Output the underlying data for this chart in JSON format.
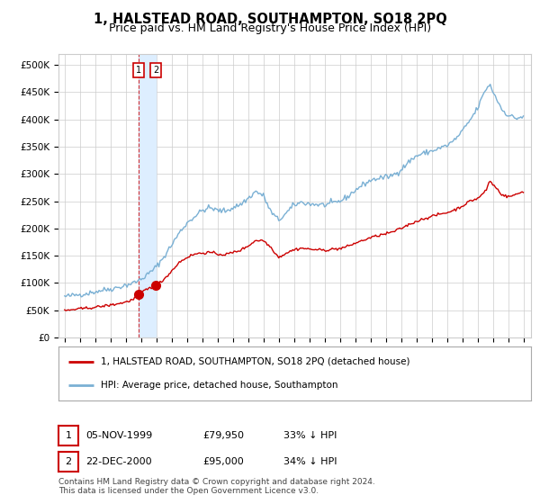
{
  "title": "1, HALSTEAD ROAD, SOUTHAMPTON, SO18 2PQ",
  "subtitle": "Price paid vs. HM Land Registry's House Price Index (HPI)",
  "title_fontsize": 10.5,
  "subtitle_fontsize": 9,
  "ylabel_ticks": [
    "£0",
    "£50K",
    "£100K",
    "£150K",
    "£200K",
    "£250K",
    "£300K",
    "£350K",
    "£400K",
    "£450K",
    "£500K"
  ],
  "ytick_vals": [
    0,
    50000,
    100000,
    150000,
    200000,
    250000,
    300000,
    350000,
    400000,
    450000,
    500000
  ],
  "ylim": [
    0,
    520000
  ],
  "xlim_start": 1994.6,
  "xlim_end": 2025.5,
  "hpi_color": "#7ab0d4",
  "price_color": "#cc0000",
  "bg_color": "#ffffff",
  "grid_color": "#cccccc",
  "highlight_color": "#ddeeff",
  "vline_color": "#cc0000",
  "transaction1_x": 1999.85,
  "transaction1_price": 79950,
  "transaction2_x": 2000.98,
  "transaction2_price": 95000,
  "legend_label_price": "1, HALSTEAD ROAD, SOUTHAMPTON, SO18 2PQ (detached house)",
  "legend_label_hpi": "HPI: Average price, detached house, Southampton",
  "footnote": "Contains HM Land Registry data © Crown copyright and database right 2024.\nThis data is licensed under the Open Government Licence v3.0.",
  "table_rows": [
    [
      "1",
      "05-NOV-1999",
      "£79,950",
      "33% ↓ HPI"
    ],
    [
      "2",
      "22-DEC-2000",
      "£95,000",
      "34% ↓ HPI"
    ]
  ],
  "hpi_anchors": [
    [
      1995.0,
      75000
    ],
    [
      1995.5,
      77000
    ],
    [
      1996.0,
      79000
    ],
    [
      1996.5,
      81000
    ],
    [
      1997.0,
      84000
    ],
    [
      1997.5,
      87000
    ],
    [
      1998.0,
      89000
    ],
    [
      1998.5,
      92000
    ],
    [
      1999.0,
      96000
    ],
    [
      1999.5,
      100000
    ],
    [
      2000.0,
      107000
    ],
    [
      2000.5,
      117000
    ],
    [
      2001.0,
      130000
    ],
    [
      2001.5,
      148000
    ],
    [
      2002.0,
      170000
    ],
    [
      2002.5,
      192000
    ],
    [
      2003.0,
      210000
    ],
    [
      2003.5,
      222000
    ],
    [
      2004.0,
      233000
    ],
    [
      2004.5,
      238000
    ],
    [
      2005.0,
      233000
    ],
    [
      2005.5,
      232000
    ],
    [
      2006.0,
      238000
    ],
    [
      2006.5,
      244000
    ],
    [
      2007.0,
      255000
    ],
    [
      2007.5,
      268000
    ],
    [
      2008.0,
      260000
    ],
    [
      2008.5,
      230000
    ],
    [
      2009.0,
      215000
    ],
    [
      2009.5,
      228000
    ],
    [
      2010.0,
      243000
    ],
    [
      2010.5,
      248000
    ],
    [
      2011.0,
      245000
    ],
    [
      2011.5,
      244000
    ],
    [
      2012.0,
      243000
    ],
    [
      2012.5,
      246000
    ],
    [
      2013.0,
      250000
    ],
    [
      2013.5,
      258000
    ],
    [
      2014.0,
      270000
    ],
    [
      2014.5,
      280000
    ],
    [
      2015.0,
      288000
    ],
    [
      2015.5,
      292000
    ],
    [
      2016.0,
      294000
    ],
    [
      2016.5,
      298000
    ],
    [
      2017.0,
      308000
    ],
    [
      2017.5,
      322000
    ],
    [
      2018.0,
      333000
    ],
    [
      2018.5,
      338000
    ],
    [
      2019.0,
      342000
    ],
    [
      2019.5,
      347000
    ],
    [
      2020.0,
      352000
    ],
    [
      2020.5,
      362000
    ],
    [
      2021.0,
      378000
    ],
    [
      2021.5,
      398000
    ],
    [
      2022.0,
      420000
    ],
    [
      2022.3,
      440000
    ],
    [
      2022.6,
      458000
    ],
    [
      2022.8,
      464000
    ],
    [
      2023.0,
      452000
    ],
    [
      2023.3,
      435000
    ],
    [
      2023.6,
      418000
    ],
    [
      2024.0,
      408000
    ],
    [
      2024.5,
      402000
    ],
    [
      2025.0,
      405000
    ]
  ],
  "price_anchors": [
    [
      1995.0,
      49000
    ],
    [
      1995.5,
      51000
    ],
    [
      1996.0,
      52500
    ],
    [
      1996.5,
      54000
    ],
    [
      1997.0,
      55500
    ],
    [
      1997.5,
      57500
    ],
    [
      1998.0,
      59500
    ],
    [
      1998.5,
      62000
    ],
    [
      1999.0,
      65000
    ],
    [
      1999.5,
      70000
    ],
    [
      1999.85,
      79950
    ],
    [
      2000.0,
      83000
    ],
    [
      2000.5,
      90000
    ],
    [
      2000.98,
      95000
    ],
    [
      2001.2,
      100000
    ],
    [
      2001.5,
      107000
    ],
    [
      2002.0,
      122000
    ],
    [
      2002.5,
      138000
    ],
    [
      2003.0,
      147000
    ],
    [
      2003.5,
      153000
    ],
    [
      2004.0,
      155000
    ],
    [
      2004.5,
      156000
    ],
    [
      2005.0,
      153000
    ],
    [
      2005.5,
      152000
    ],
    [
      2006.0,
      156000
    ],
    [
      2006.5,
      160000
    ],
    [
      2007.0,
      168000
    ],
    [
      2007.5,
      178000
    ],
    [
      2008.0,
      178000
    ],
    [
      2008.5,
      165000
    ],
    [
      2009.0,
      147000
    ],
    [
      2009.5,
      155000
    ],
    [
      2010.0,
      161000
    ],
    [
      2010.5,
      164000
    ],
    [
      2011.0,
      162000
    ],
    [
      2011.5,
      161000
    ],
    [
      2012.0,
      160000
    ],
    [
      2012.5,
      162000
    ],
    [
      2013.0,
      163000
    ],
    [
      2013.5,
      167000
    ],
    [
      2014.0,
      173000
    ],
    [
      2014.5,
      178000
    ],
    [
      2015.0,
      183000
    ],
    [
      2015.5,
      187000
    ],
    [
      2016.0,
      190000
    ],
    [
      2016.5,
      194000
    ],
    [
      2017.0,
      200000
    ],
    [
      2017.5,
      207000
    ],
    [
      2018.0,
      213000
    ],
    [
      2018.5,
      218000
    ],
    [
      2019.0,
      222000
    ],
    [
      2019.5,
      226000
    ],
    [
      2020.0,
      229000
    ],
    [
      2020.5,
      234000
    ],
    [
      2021.0,
      241000
    ],
    [
      2021.5,
      250000
    ],
    [
      2022.0,
      255000
    ],
    [
      2022.3,
      262000
    ],
    [
      2022.6,
      272000
    ],
    [
      2022.8,
      288000
    ],
    [
      2023.0,
      281000
    ],
    [
      2023.3,
      272000
    ],
    [
      2023.6,
      262000
    ],
    [
      2024.0,
      258000
    ],
    [
      2024.5,
      262000
    ],
    [
      2025.0,
      268000
    ]
  ]
}
